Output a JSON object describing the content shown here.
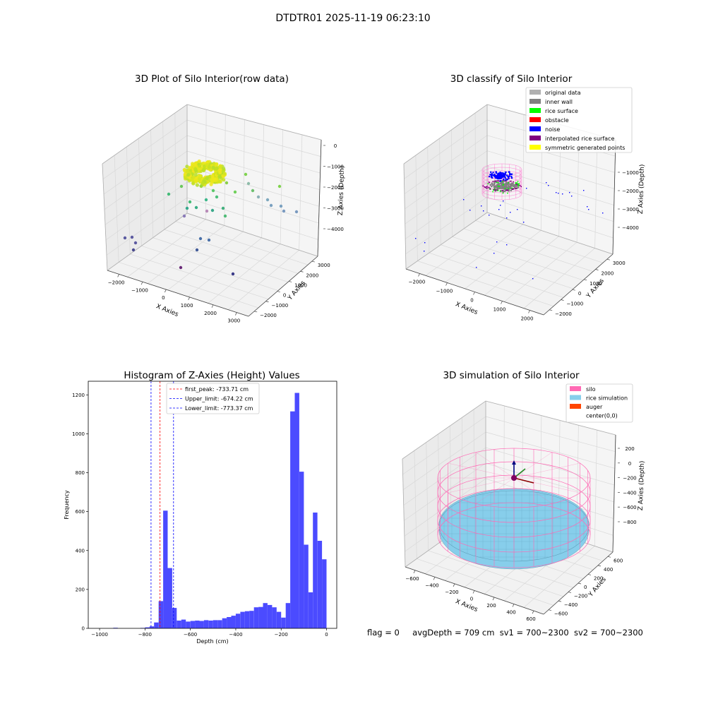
{
  "suptitle": "DTDTR01 2025-11-19 06:23:10",
  "footer": {
    "flag": "flag = 0",
    "avg_depth": "avgDepth = 709 cm",
    "sv1": "sv1 = 700~2300",
    "sv2": "sv2 = 700~2300"
  },
  "colors": {
    "histogram_bar": "#4b4bff",
    "peak_line": "#ff0000",
    "limit_line": "#0000ff",
    "original_data": "#b0b0b0",
    "inner_wall": "#808080",
    "rice_surface": "#00ff00",
    "obstacle": "#ff0000",
    "noise": "#0000ff",
    "interpolated_rice_surface": "#800080",
    "symmetric_generated_points": "#ffff00",
    "silo": "#ff69b4",
    "rice_simulation": "#87ceeb",
    "auger": "#ff4500"
  },
  "chart_data": [
    {
      "type": "scatter",
      "title": "3D Plot of Silo Interior(row data)",
      "xlabel": "X Axies",
      "ylabel": "Y Axies",
      "zlabel": "Z Axies (Depth)",
      "x_ticks": [
        "−2000",
        "−1000",
        "0",
        "1000",
        "2000",
        "3000"
      ],
      "y_ticks": [
        "−2000",
        "−1000",
        "0",
        "1000",
        "2000",
        "3000"
      ],
      "z_ticks": [
        "0",
        "−1000",
        "−2000",
        "−3000",
        "−4000"
      ],
      "xlim": [
        -2500,
        3000
      ],
      "ylim": [
        -2000,
        3500
      ],
      "zlim": [
        -4500,
        0
      ]
    },
    {
      "type": "scatter",
      "title": "3D classify of Silo Interior",
      "xlabel": "X Axies",
      "ylabel": "Y Axies",
      "zlabel": "Z Axies (Depth)",
      "x_ticks": [
        "−2000",
        "−1000",
        "0",
        "1000",
        "2000"
      ],
      "y_ticks": [
        "−2000",
        "−1000",
        "0",
        "1000",
        "2000",
        "3000"
      ],
      "z_ticks": [
        "−1000",
        "−2000",
        "−3000",
        "−4000"
      ],
      "legend_position": "upper-right",
      "legend": [
        {
          "label": "original data",
          "color": "#b0b0b0"
        },
        {
          "label": "inner wall",
          "color": "#808080"
        },
        {
          "label": "rice surface",
          "color": "#00ff00"
        },
        {
          "label": "obstacle",
          "color": "#ff0000"
        },
        {
          "label": "noise",
          "color": "#0000ff"
        },
        {
          "label": "interpolated rice surface",
          "color": "#800080"
        },
        {
          "label": "symmetric generated points",
          "color": "#ffff00"
        }
      ]
    },
    {
      "type": "bar",
      "title": "Histogram of Z-Axies (Height) Values",
      "xlabel": "Depth (cm)",
      "ylabel": "Frequency",
      "xlim": [
        -1050,
        45
      ],
      "ylim": [
        0,
        1270
      ],
      "x_ticks": [
        -1000,
        -800,
        -600,
        -400,
        -200,
        0
      ],
      "x_tick_labels": [
        "−1000",
        "−800",
        "−600",
        "−400",
        "−200",
        "0"
      ],
      "y_ticks": [
        0,
        200,
        400,
        600,
        800,
        1000,
        1200
      ],
      "bin_width": 20,
      "bins": [
        [
          -940,
          3
        ],
        [
          -820,
          2
        ],
        [
          -800,
          5
        ],
        [
          -780,
          10
        ],
        [
          -760,
          30
        ],
        [
          -740,
          140
        ],
        [
          -720,
          605
        ],
        [
          -700,
          310
        ],
        [
          -680,
          105
        ],
        [
          -660,
          40
        ],
        [
          -640,
          45
        ],
        [
          -620,
          35
        ],
        [
          -600,
          38
        ],
        [
          -580,
          40
        ],
        [
          -560,
          38
        ],
        [
          -540,
          42
        ],
        [
          -520,
          40
        ],
        [
          -500,
          42
        ],
        [
          -480,
          42
        ],
        [
          -460,
          52
        ],
        [
          -440,
          58
        ],
        [
          -420,
          65
        ],
        [
          -400,
          75
        ],
        [
          -380,
          85
        ],
        [
          -360,
          88
        ],
        [
          -340,
          90
        ],
        [
          -320,
          108
        ],
        [
          -300,
          110
        ],
        [
          -280,
          130
        ],
        [
          -260,
          120
        ],
        [
          -240,
          108
        ],
        [
          -220,
          85
        ],
        [
          -200,
          55
        ],
        [
          -180,
          130
        ],
        [
          -160,
          1115
        ],
        [
          -140,
          1210
        ],
        [
          -120,
          805
        ],
        [
          -100,
          430
        ],
        [
          -80,
          185
        ],
        [
          -60,
          595
        ],
        [
          -40,
          450
        ],
        [
          -20,
          355
        ]
      ],
      "vlines": [
        {
          "label": "first_peak: -733.71 cm",
          "x": -733.71,
          "color": "#ff0000"
        },
        {
          "label": "Upper_limit: -674.22 cm",
          "x": -674.22,
          "color": "#0000ff"
        },
        {
          "label": "Lower_limit: -773.37 cm",
          "x": -773.37,
          "color": "#0000ff"
        }
      ],
      "legend_position": "upper-center"
    },
    {
      "type": "scatter",
      "title": "3D simulation of Silo Interior",
      "xlabel": "X Axies",
      "ylabel": "Y Axies",
      "zlabel": "Z Axies (Depth)",
      "x_ticks": [
        "−600",
        "−400",
        "−200",
        "0",
        "200",
        "400",
        "600"
      ],
      "y_ticks": [
        "−600",
        "−400",
        "−200",
        "0",
        "200",
        "400",
        "600"
      ],
      "z_ticks": [
        "200",
        "0",
        "−200",
        "−400",
        "−600",
        "−800"
      ],
      "legend_position": "upper-right",
      "legend": [
        {
          "label": "silo",
          "color": "#ff69b4"
        },
        {
          "label": "rice simulation",
          "color": "#87ceeb"
        },
        {
          "label": "auger",
          "color": "#ff4500"
        },
        {
          "label": "center(0,0)",
          "color": ""
        }
      ]
    }
  ]
}
